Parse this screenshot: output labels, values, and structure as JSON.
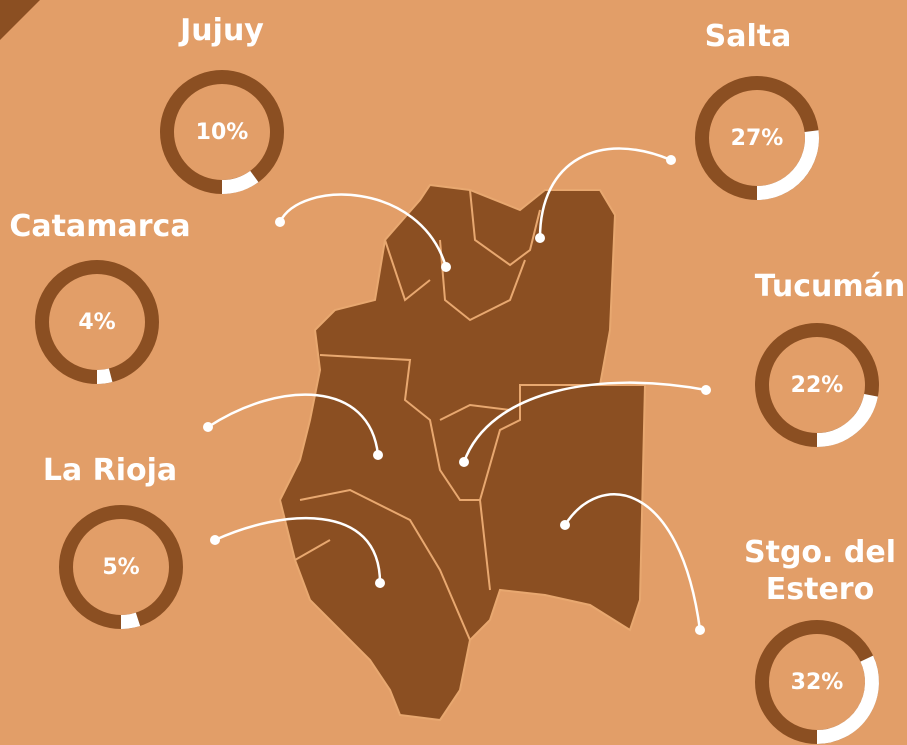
{
  "chart_data": [
    {
      "type": "donut",
      "title": "Jujuy",
      "values": [
        10
      ],
      "value_labels": [
        "10%"
      ]
    },
    {
      "type": "donut",
      "title": "Salta",
      "values": [
        27
      ],
      "value_labels": [
        "27%"
      ]
    },
    {
      "type": "donut",
      "title": "Catamarca",
      "values": [
        4
      ],
      "value_labels": [
        "4%"
      ]
    },
    {
      "type": "donut",
      "title": "Tucumán",
      "values": [
        22
      ],
      "value_labels": [
        "22%"
      ]
    },
    {
      "type": "donut",
      "title": "La Rioja",
      "values": [
        5
      ],
      "value_labels": [
        "5%"
      ]
    },
    {
      "type": "donut",
      "title": "Stgo. del Estero",
      "values": [
        32
      ],
      "value_labels": [
        "32%"
      ]
    }
  ]
}
